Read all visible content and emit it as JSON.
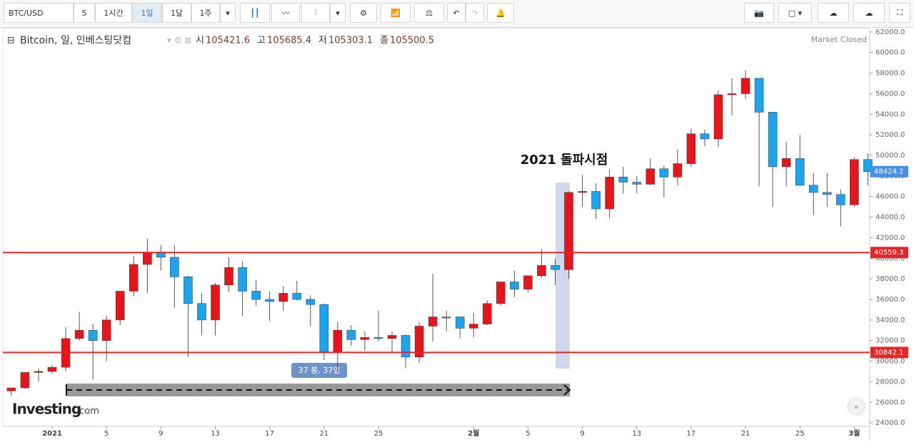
{
  "toolbar": {
    "symbol": "BTC/USD",
    "interval": "5",
    "buttons": [
      "1시간",
      "1일",
      "1달",
      "1주"
    ]
  },
  "header": {
    "title": "Bitcoin, 일, 인베스팅닷컴",
    "ohlc": [
      {
        "label": "시",
        "value": "105421.6"
      },
      {
        "label": "고",
        "value": "105685.4"
      },
      {
        "label": "저",
        "value": "105303.1"
      },
      {
        "label": "종",
        "value": "105500.5"
      }
    ],
    "status": "Market Closed"
  },
  "logo": {
    "brand": "Investing",
    "suffix": ".com"
  },
  "chart_data": {
    "type": "candlestick",
    "categories": [
      null,
      null,
      null,
      "2021",
      null,
      null,
      null,
      "5",
      null,
      null,
      null,
      "9",
      null,
      null,
      null,
      "13",
      null,
      null,
      null,
      "17",
      null,
      null,
      null,
      "21",
      null,
      null,
      null,
      "25",
      null,
      null,
      null,
      null,
      null,
      null,
      "2월",
      null,
      null,
      null,
      "5",
      null,
      null,
      null,
      "9",
      null,
      null,
      null,
      "13",
      null,
      null,
      null,
      "17",
      null,
      null,
      null,
      "21",
      null,
      null,
      null,
      "25",
      null,
      null,
      null,
      "3월",
      null
    ],
    "open": [
      27100,
      27400,
      28900,
      29000,
      29400,
      32200,
      33000,
      32000,
      34000,
      36800,
      39400,
      40600,
      40100,
      38200,
      35600,
      34000,
      37400,
      39100,
      36800,
      36000,
      35800,
      36600,
      36000,
      35500,
      30900,
      33000,
      32100,
      32300,
      32200,
      32500,
      30400,
      33400,
      34300,
      34300,
      33200,
      33600,
      35600,
      37700,
      37000,
      38300,
      39300,
      38900,
      46400,
      46500,
      44800,
      47900,
      47400,
      47200,
      48700,
      47900,
      49200,
      52100,
      51600,
      55900,
      56000,
      57500,
      54200,
      48900,
      49700,
      47100,
      46400,
      46200,
      45200,
      49600
    ],
    "high": [
      27400,
      28900,
      29300,
      29600,
      33300,
      34800,
      33600,
      34400,
      36800,
      40200,
      41900,
      41300,
      41300,
      38300,
      36600,
      37600,
      40100,
      39700,
      37900,
      36800,
      37300,
      37800,
      36400,
      35600,
      33800,
      33500,
      32900,
      34900,
      32900,
      32600,
      33800,
      38500,
      34900,
      34300,
      34700,
      35900,
      37700,
      38800,
      38300,
      40900,
      40000,
      46500,
      48100,
      47300,
      48600,
      48900,
      48000,
      49700,
      49000,
      50600,
      52600,
      52500,
      56300,
      57500,
      58300,
      57500,
      54200,
      51300,
      52000,
      48300,
      48300,
      46700,
      49800,
      50200
    ],
    "low": [
      26600,
      27300,
      28000,
      28800,
      29000,
      32000,
      28200,
      30000,
      33500,
      36300,
      36600,
      38800,
      35200,
      30400,
      32500,
      32500,
      36700,
      34400,
      35400,
      33900,
      34900,
      35900,
      33400,
      30100,
      28900,
      31500,
      31000,
      31900,
      30900,
      29300,
      29800,
      31900,
      32900,
      32200,
      32300,
      33500,
      35400,
      36200,
      36700,
      38100,
      37400,
      38000,
      45000,
      43800,
      43900,
      46300,
      46300,
      47100,
      45900,
      47100,
      48900,
      50900,
      50800,
      53900,
      55500,
      47000,
      45000,
      47000,
      47000,
      44200,
      45000,
      43100,
      45000,
      47100
    ],
    "close": [
      27400,
      28900,
      29000,
      29400,
      32200,
      33000,
      32000,
      34000,
      36800,
      39400,
      40600,
      40100,
      38200,
      35600,
      34000,
      37400,
      39100,
      36800,
      36000,
      35800,
      36600,
      36000,
      35500,
      30900,
      33000,
      32100,
      32300,
      32200,
      32500,
      30400,
      33400,
      34300,
      34200,
      33200,
      33600,
      35600,
      37700,
      37000,
      38300,
      39300,
      38900,
      46400,
      46500,
      44800,
      47900,
      47400,
      47200,
      48700,
      47900,
      49200,
      52100,
      51600,
      55900,
      56000,
      57500,
      54200,
      48900,
      49700,
      47100,
      46400,
      46200,
      45200,
      49600,
      48424.2
    ],
    "up_color": "#e8141b",
    "down_color": "#1ca4ee",
    "levels": [
      40559.3,
      30842.1
    ],
    "level_color": "#e8242b",
    "annotation": "2021 돌파시점",
    "measure_label": "37 봉, 37일",
    "ylim": [
      23800,
      62200
    ],
    "yticks": [
      {
        "value": 62000,
        "label": "62000.0"
      },
      {
        "value": 60000,
        "label": "60000.0"
      },
      {
        "value": 58000,
        "label": "58000.0"
      },
      {
        "value": 56000,
        "label": "56000.0"
      },
      {
        "value": 54000,
        "label": "54000.0"
      },
      {
        "value": 52000,
        "label": "52000.0"
      },
      {
        "value": 50000,
        "label": "50000.0"
      },
      {
        "value": 48000,
        "label": "48000.0"
      },
      {
        "value": 46000,
        "label": "46000.0"
      },
      {
        "value": 44000,
        "label": "44000.0"
      },
      {
        "value": 42000,
        "label": "42000.0"
      },
      {
        "value": 40000,
        "label": "40000.0"
      },
      {
        "value": 38000,
        "label": "38000.0"
      },
      {
        "value": 36000,
        "label": "36000.0"
      },
      {
        "value": 34000,
        "label": "34000.0"
      },
      {
        "value": 32000,
        "label": "32000.0"
      },
      {
        "value": 30000,
        "label": "30000.0"
      },
      {
        "value": 28000,
        "label": "28000.0"
      },
      {
        "value": 26000,
        "label": "26000.0"
      },
      {
        "value": 24000,
        "label": "24000.0"
      }
    ],
    "grid": false
  }
}
